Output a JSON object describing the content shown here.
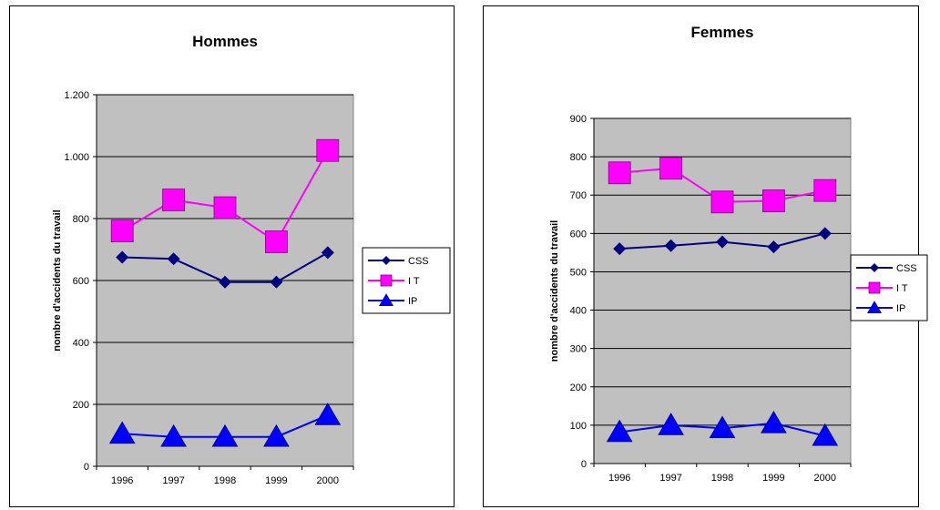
{
  "chart_data": [
    {
      "type": "line",
      "title": "Hommes",
      "xlabel": "",
      "ylabel": "nombre d'accidents du travail",
      "categories": [
        "1996",
        "1997",
        "1998",
        "1999",
        "2000"
      ],
      "ylim": [
        0,
        1200
      ],
      "yticks": [
        0,
        200,
        400,
        600,
        800,
        1000,
        1200
      ],
      "ytick_labels": [
        "0",
        "200",
        "400",
        "600",
        "800",
        "1.000",
        "1.200"
      ],
      "grid": true,
      "legend": "right",
      "series": [
        {
          "name": "CSS",
          "marker": "diamond",
          "color": "#000080",
          "values": [
            675,
            670,
            595,
            595,
            690
          ]
        },
        {
          "name": "I T",
          "marker": "square",
          "color": "#ff00ff",
          "values": [
            760,
            860,
            835,
            725,
            1020
          ]
        },
        {
          "name": "IP",
          "marker": "triangle",
          "color": "#0000ff",
          "values": [
            105,
            95,
            95,
            95,
            165
          ]
        }
      ]
    },
    {
      "type": "line",
      "title": "Femmes",
      "xlabel": "",
      "ylabel": "nombre d'accidents du travail",
      "categories": [
        "1996",
        "1997",
        "1998",
        "1999",
        "2000"
      ],
      "ylim": [
        0,
        900
      ],
      "yticks": [
        0,
        100,
        200,
        300,
        400,
        500,
        600,
        700,
        800,
        900
      ],
      "ytick_labels": [
        "0",
        "100",
        "200",
        "300",
        "400",
        "500",
        "600",
        "700",
        "800",
        "900"
      ],
      "grid": true,
      "legend": "right",
      "series": [
        {
          "name": "CSS",
          "marker": "diamond",
          "color": "#000080",
          "values": [
            560,
            568,
            578,
            565,
            600
          ]
        },
        {
          "name": "I T",
          "marker": "square",
          "color": "#ff00ff",
          "values": [
            758,
            770,
            682,
            685,
            712
          ]
        },
        {
          "name": "IP",
          "marker": "triangle",
          "color": "#0000ff",
          "values": [
            82,
            100,
            92,
            105,
            72
          ]
        }
      ]
    }
  ]
}
